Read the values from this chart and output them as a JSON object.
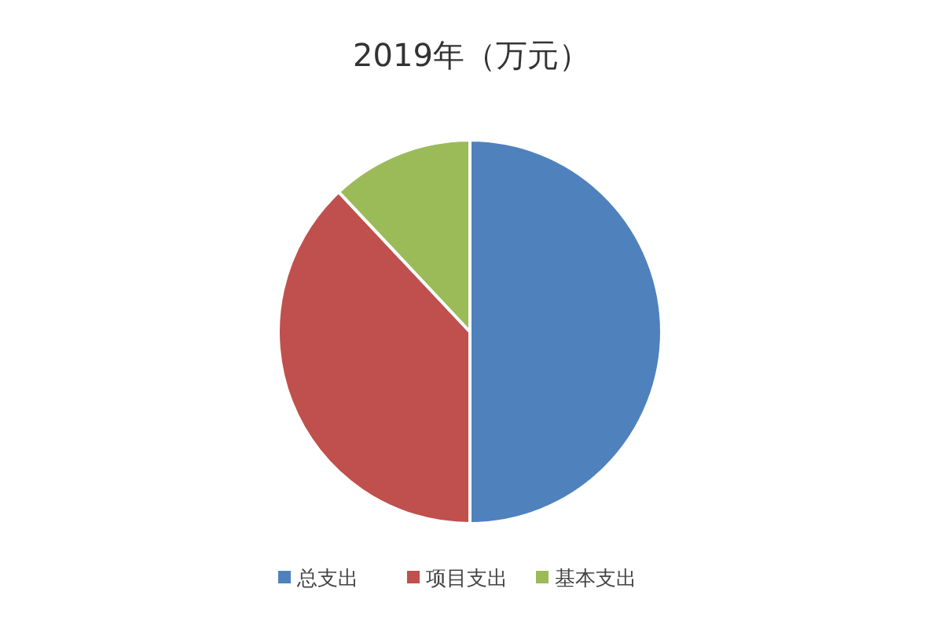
{
  "chart_data": {
    "type": "pie",
    "title": "2019年（万元）",
    "categories": [
      "总支出",
      "项目支出",
      "基本支出"
    ],
    "values": [
      50,
      38,
      12
    ],
    "colors": [
      "#4f81bd",
      "#c0504d",
      "#9bbb59"
    ],
    "legend": "bottom"
  }
}
